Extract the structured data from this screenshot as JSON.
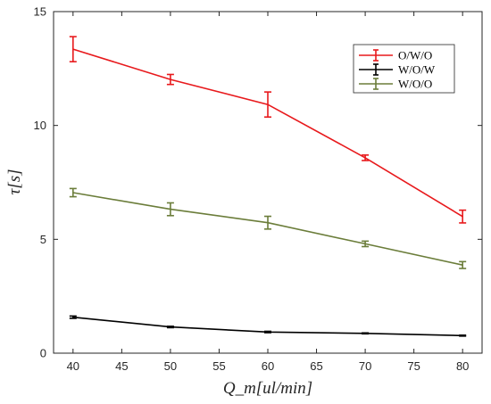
{
  "chart_data": {
    "type": "line",
    "title": "",
    "xlabel": "Q_m[ul/min]",
    "ylabel": "τ[s]",
    "x": [
      40,
      50,
      60,
      70,
      80
    ],
    "xlim": [
      38,
      82
    ],
    "ylim": [
      0,
      15
    ],
    "xticks": [
      "40",
      "45",
      "50",
      "55",
      "60",
      "65",
      "70",
      "75",
      "80"
    ],
    "yticks": [
      "0",
      "5",
      "10",
      "15"
    ],
    "grid": false,
    "legend_position": "top-right",
    "series": [
      {
        "name": "O/W/O",
        "color": "#e8191c",
        "values": [
          13.35,
          12.02,
          10.92,
          8.58,
          6.0
        ],
        "errors": [
          0.55,
          0.22,
          0.55,
          0.12,
          0.28
        ]
      },
      {
        "name": "W/O/W",
        "color": "#000000",
        "values": [
          1.58,
          1.15,
          0.93,
          0.87,
          0.77
        ],
        "errors": [
          0.05,
          0.03,
          0.03,
          0.02,
          0.02
        ]
      },
      {
        "name": "W/O/O",
        "color": "#6b7d3a",
        "values": [
          7.05,
          6.32,
          5.73,
          4.8,
          3.87
        ],
        "errors": [
          0.18,
          0.28,
          0.28,
          0.12,
          0.15
        ]
      }
    ]
  }
}
